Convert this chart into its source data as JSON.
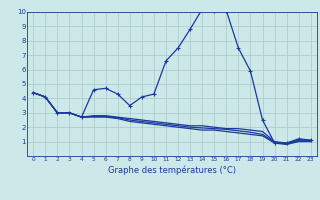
{
  "x": [
    0,
    1,
    2,
    3,
    4,
    5,
    6,
    7,
    8,
    9,
    10,
    11,
    12,
    13,
    14,
    15,
    16,
    17,
    18,
    19,
    20,
    21,
    22,
    23
  ],
  "temp_main": [
    4.4,
    4.1,
    3.0,
    3.0,
    2.7,
    4.6,
    4.7,
    4.3,
    3.5,
    4.1,
    4.3,
    6.6,
    7.5,
    8.8,
    10.2,
    10.1,
    10.1,
    7.5,
    5.9,
    2.5,
    0.9,
    0.9,
    1.2,
    1.1
  ],
  "temp_line2": [
    4.4,
    4.1,
    3.0,
    3.0,
    2.7,
    2.8,
    2.8,
    2.7,
    2.6,
    2.5,
    2.4,
    2.3,
    2.2,
    2.1,
    2.1,
    2.0,
    1.9,
    1.9,
    1.8,
    1.7,
    1.0,
    0.9,
    1.1,
    1.1
  ],
  "temp_line3": [
    4.4,
    4.1,
    3.0,
    3.0,
    2.7,
    2.75,
    2.75,
    2.65,
    2.5,
    2.4,
    2.3,
    2.2,
    2.1,
    2.0,
    1.95,
    1.9,
    1.85,
    1.75,
    1.65,
    1.5,
    0.95,
    0.85,
    1.05,
    1.05
  ],
  "temp_line4": [
    4.4,
    4.1,
    3.0,
    3.0,
    2.7,
    2.7,
    2.7,
    2.6,
    2.4,
    2.3,
    2.2,
    2.1,
    2.0,
    1.9,
    1.8,
    1.8,
    1.7,
    1.6,
    1.5,
    1.4,
    0.9,
    0.8,
    1.0,
    1.0
  ],
  "color_main": "#1a3a9e",
  "background": "#cce8e8",
  "grid_color": "#a8c8c8",
  "xlabel": "Graphe des températures (°C)",
  "ylim": [
    0,
    10
  ],
  "xlim": [
    -0.5,
    23.5
  ],
  "yticks": [
    1,
    2,
    3,
    4,
    5,
    6,
    7,
    8,
    9,
    10
  ],
  "xticks": [
    0,
    1,
    2,
    3,
    4,
    5,
    6,
    7,
    8,
    9,
    10,
    11,
    12,
    13,
    14,
    15,
    16,
    17,
    18,
    19,
    20,
    21,
    22,
    23
  ]
}
